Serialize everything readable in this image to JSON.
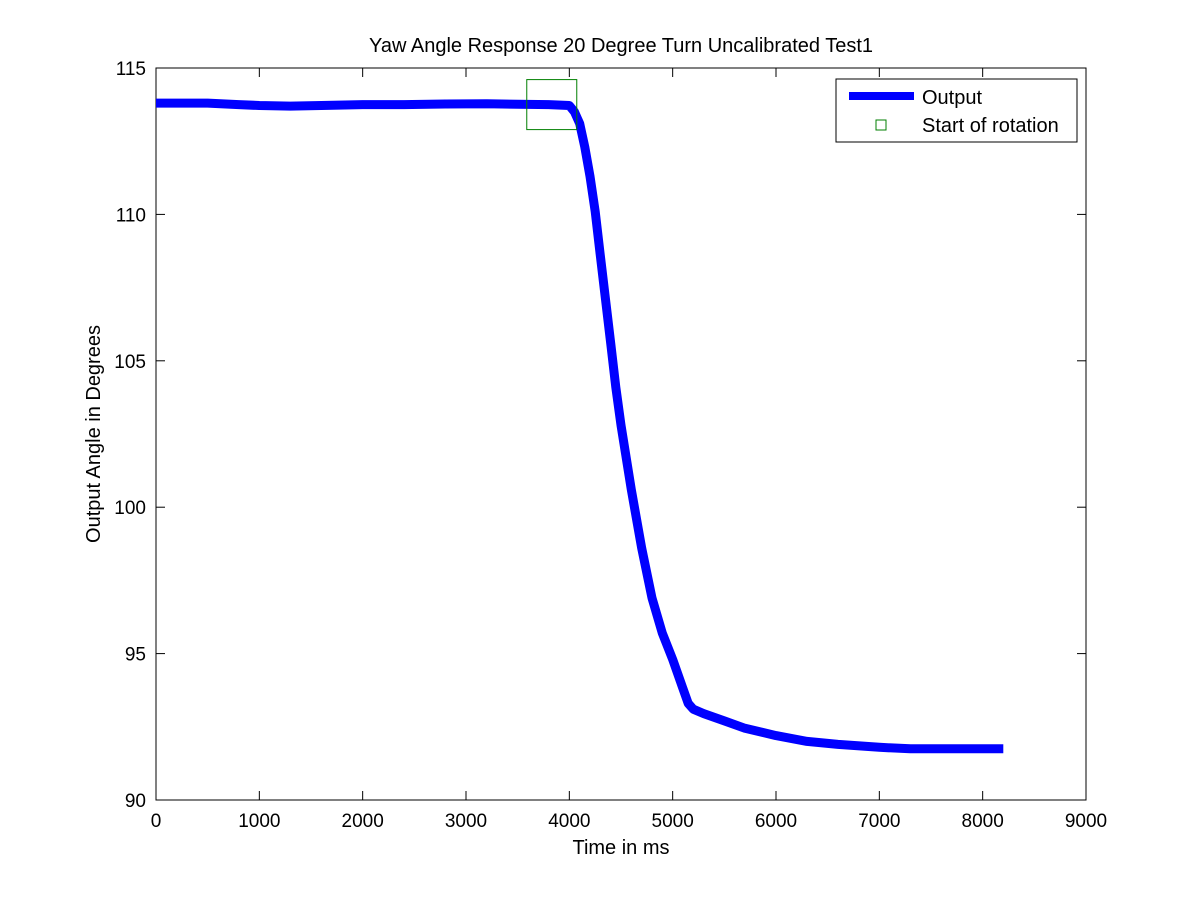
{
  "chart_data": {
    "type": "line",
    "title": "Yaw Angle Response 20 Degree Turn Uncalibrated Test1",
    "xlabel": "Time in ms",
    "ylabel": "Output Angle in Degrees",
    "xlim": [
      0,
      9000
    ],
    "ylim": [
      90,
      115
    ],
    "xticks": [
      "0",
      "1000",
      "2000",
      "3000",
      "4000",
      "5000",
      "6000",
      "7000",
      "8000",
      "9000"
    ],
    "yticks": [
      "90",
      "95",
      "100",
      "105",
      "110",
      "115"
    ],
    "grid": false,
    "legend_position": "top-right",
    "series": [
      {
        "name": "Output",
        "color": "#0000ff",
        "x": [
          0,
          200,
          500,
          800,
          1000,
          1300,
          1600,
          2000,
          2400,
          2800,
          3200,
          3500,
          3800,
          4000,
          4050,
          4100,
          4150,
          4200,
          4250,
          4300,
          4350,
          4400,
          4450,
          4500,
          4600,
          4700,
          4800,
          4900,
          5000,
          5100,
          5150,
          5200,
          5300,
          5500,
          5700,
          6000,
          6300,
          6600,
          7000,
          7300,
          7600,
          8000,
          8200
        ],
        "y": [
          113.8,
          113.8,
          113.8,
          113.75,
          113.72,
          113.7,
          113.72,
          113.75,
          113.75,
          113.77,
          113.78,
          113.76,
          113.75,
          113.72,
          113.5,
          113.1,
          112.3,
          111.3,
          110.1,
          108.6,
          107.1,
          105.6,
          104.1,
          102.8,
          100.6,
          98.6,
          96.9,
          95.7,
          94.8,
          93.8,
          93.3,
          93.1,
          92.95,
          92.7,
          92.45,
          92.2,
          92.0,
          91.9,
          91.8,
          91.75,
          91.75,
          91.75,
          91.75
        ]
      },
      {
        "name": "Start of rotation",
        "color": "#007f00",
        "marker": "square",
        "x": [
          3830
        ],
        "y": [
          113.75
        ]
      }
    ]
  }
}
